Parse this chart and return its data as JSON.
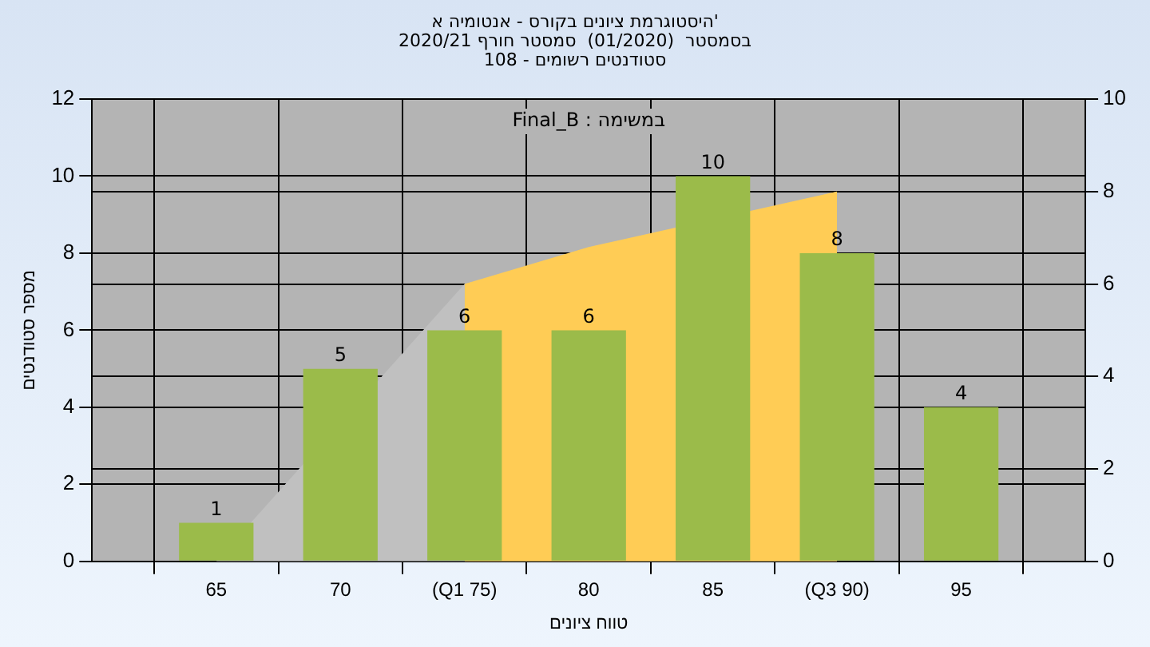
{
  "chart_data": {
    "type": "bar",
    "title": "'היסטוגרמת ציונים בקורס - אנטומיה א",
    "subtitle": "בסמסטר  (01/2020)  סמסטר חורף 2020/21\nסטודנטים רשומים - 108",
    "xlabel": "טווח ציונים",
    "ylabel": "מספר סטודנטים",
    "annotations": [
      "במשימה : Final_B"
    ],
    "categories": [
      null,
      "65",
      "70",
      "(Q1 75)",
      "80",
      "85",
      "(Q3 90)",
      "95",
      null
    ],
    "series": [
      {
        "color": "#9bbb4a",
        "values": [
          null,
          1,
          5,
          6,
          6,
          10,
          8,
          4,
          null
        ],
        "value_labels": [
          null,
          "1",
          "5",
          "6",
          "6",
          "10",
          "8",
          "4",
          null
        ]
      },
      {
        "type": "area",
        "axis": "y2",
        "color": "#ffcc55",
        "values": [
          null,
          null,
          null,
          6,
          6.8,
          null,
          8,
          null,
          null
        ]
      },
      {
        "type": "area",
        "axis": "y2",
        "color": "#c0c0c0",
        "values": [
          null,
          0,
          null,
          6,
          null,
          null,
          8,
          null,
          null
        ]
      }
    ],
    "ylim": [
      0,
      12
    ],
    "yticks": [
      0,
      2,
      4,
      6,
      8,
      10,
      12
    ],
    "y2lim": [
      0,
      10
    ],
    "y2ticks": [
      0,
      2,
      4,
      6,
      8,
      10
    ],
    "grid": true
  }
}
